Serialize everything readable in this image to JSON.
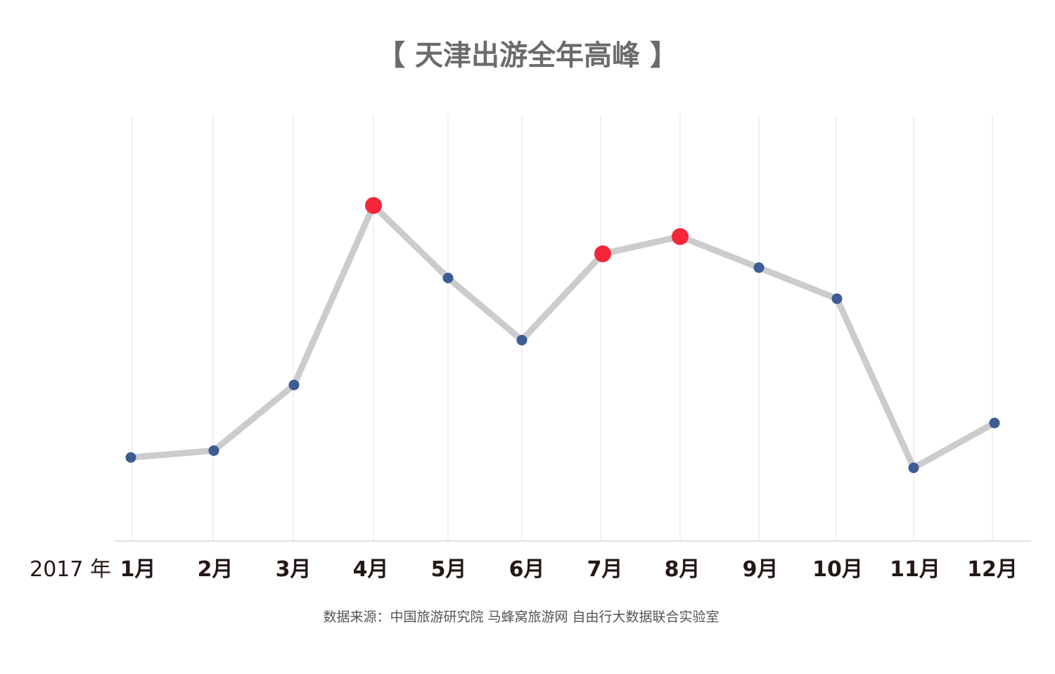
{
  "chart_data": {
    "type": "line",
    "title": "【 天津出游全年高峰 】",
    "year_label": "2017 年",
    "categories": [
      "1月",
      "2月",
      "3月",
      "4月",
      "5月",
      "6月",
      "7月",
      "8月",
      "9月",
      "10月",
      "11月",
      "12月"
    ],
    "series": [
      {
        "values": [
          16,
          18,
          37,
          89,
          68,
          50,
          75,
          80,
          71,
          62,
          13,
          26
        ],
        "peaks": [
          3,
          6,
          7
        ]
      }
    ],
    "ylim": [
      -8,
      120
    ],
    "grid": "vertical",
    "source": "数据来源：中国旅游研究院 马蜂窝旅游网 自由行大数据联合实验室",
    "colors": {
      "line": "#cccccc",
      "point": "#3d5c93",
      "peak": "#f5263a",
      "grid": "#e3e3e3",
      "axis": "#d9d9d9",
      "title": "#6b6b6b",
      "ticks": "#231815",
      "source": "#555555"
    }
  }
}
